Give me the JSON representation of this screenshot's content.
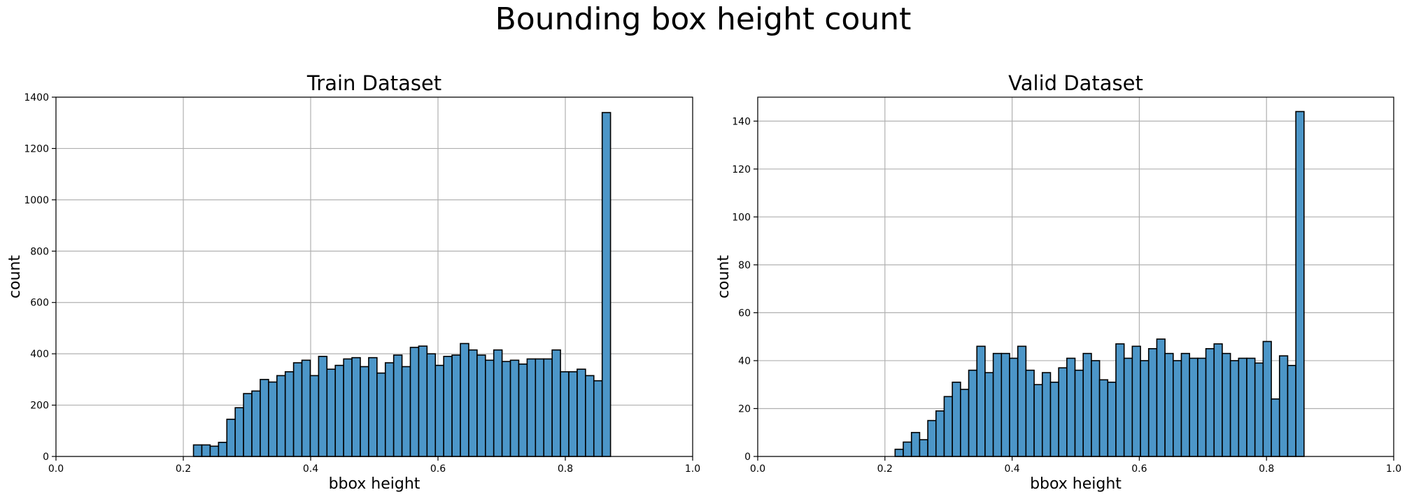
{
  "suptitle": "Bounding box height count",
  "colors": {
    "bar": "#4c96c8",
    "bar_edge": "#000000",
    "grid": "#b0b0b0"
  },
  "chart_data": [
    {
      "type": "bar",
      "title": "Train Dataset",
      "xlabel": "bbox height",
      "ylabel": "count",
      "xlim": [
        0,
        1
      ],
      "ylim": [
        0,
        1400
      ],
      "xticks": [
        0.0,
        0.2,
        0.4,
        0.6,
        0.8,
        1.0
      ],
      "xtick_labels": [
        "0.0",
        "0.2",
        "0.4",
        "0.6",
        "0.8",
        "1.0"
      ],
      "yticks": [
        0,
        200,
        400,
        600,
        800,
        1000,
        1200,
        1400
      ],
      "ytick_labels": [
        "0",
        "200",
        "400",
        "600",
        "800",
        "1000",
        "1200",
        "1400"
      ],
      "grid": true,
      "bin_start": 0.216,
      "bin_width": 0.0131,
      "values": [
        45,
        45,
        40,
        55,
        145,
        190,
        245,
        255,
        300,
        290,
        315,
        330,
        365,
        375,
        315,
        390,
        340,
        355,
        380,
        385,
        350,
        385,
        325,
        365,
        395,
        350,
        425,
        430,
        400,
        355,
        390,
        395,
        440,
        415,
        395,
        375,
        415,
        370,
        375,
        360,
        380,
        380,
        380,
        415,
        330,
        330,
        340,
        315,
        295,
        1340
      ]
    },
    {
      "type": "bar",
      "title": "Valid Dataset",
      "xlabel": "bbox height",
      "ylabel": "count",
      "xlim": [
        0,
        1
      ],
      "ylim": [
        0,
        150
      ],
      "xticks": [
        0.0,
        0.2,
        0.4,
        0.6,
        0.8,
        1.0
      ],
      "xtick_labels": [
        "0.0",
        "0.2",
        "0.4",
        "0.6",
        "0.8",
        "1.0"
      ],
      "yticks": [
        0,
        20,
        40,
        60,
        80,
        100,
        120,
        140
      ],
      "ytick_labels": [
        "0",
        "20",
        "40",
        "60",
        "80",
        "100",
        "120",
        "140"
      ],
      "grid": true,
      "bin_start": 0.216,
      "bin_width": 0.01286,
      "values": [
        3,
        6,
        10,
        7,
        15,
        19,
        25,
        31,
        28,
        36,
        46,
        35,
        43,
        43,
        41,
        46,
        36,
        30,
        35,
        31,
        37,
        41,
        36,
        43,
        40,
        32,
        31,
        47,
        41,
        46,
        40,
        45,
        49,
        43,
        40,
        43,
        41,
        41,
        45,
        47,
        43,
        40,
        41,
        41,
        39,
        48,
        24,
        42,
        38,
        144
      ]
    }
  ]
}
